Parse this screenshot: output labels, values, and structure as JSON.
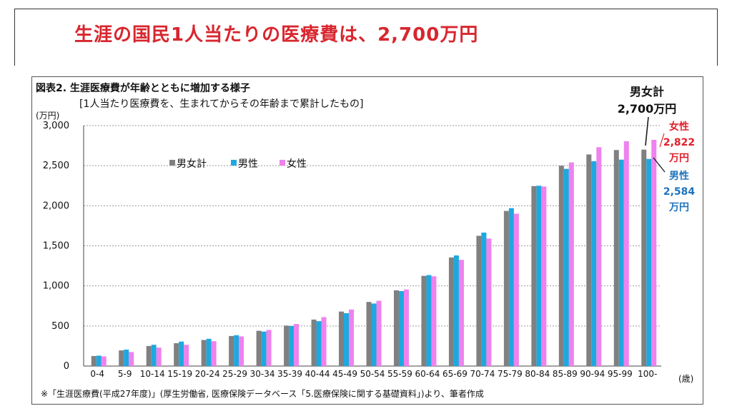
{
  "slide": {
    "title": "生涯の国民1人当たりの医療費は、2,700万円"
  },
  "chart_data": {
    "type": "bar",
    "title": "図表2. 生涯医療費が年齢とともに増加する様子",
    "subtitle": "[1人当たり医療費を、生まれてからその年齢まで累計したもの]",
    "ylabel": "(万円)",
    "xlabel": "(歳)",
    "ylim": [
      0,
      3000
    ],
    "yticks": [
      0,
      500,
      1000,
      1500,
      2000,
      2500,
      3000
    ],
    "ytick_labels": [
      "0",
      "500",
      "1,000",
      "1,500",
      "2,000",
      "2,500",
      "3,000"
    ],
    "grid": true,
    "legend_position": "top-left",
    "categories": [
      "0-4",
      "5-9",
      "10-14",
      "15-19",
      "20-24",
      "25-29",
      "30-34",
      "35-39",
      "40-44",
      "45-49",
      "50-54",
      "55-59",
      "60-64",
      "65-69",
      "70-74",
      "75-79",
      "80-84",
      "85-89",
      "90-94",
      "95-99",
      "100-"
    ],
    "series": [
      {
        "name": "男女計",
        "color": "#808080",
        "values": [
          125,
          195,
          250,
          285,
          325,
          375,
          440,
          505,
          580,
          680,
          800,
          945,
          1125,
          1355,
          1625,
          1935,
          2245,
          2500,
          2640,
          2695,
          2700
        ]
      },
      {
        "name": "男性",
        "color": "#1ea8e0",
        "values": [
          130,
          205,
          265,
          305,
          340,
          385,
          430,
          500,
          560,
          660,
          780,
          935,
          1135,
          1380,
          1665,
          1970,
          2250,
          2460,
          2555,
          2575,
          2584
        ]
      },
      {
        "name": "女性",
        "color": "#ee82ee",
        "values": [
          120,
          175,
          230,
          265,
          310,
          370,
          450,
          525,
          610,
          705,
          815,
          955,
          1120,
          1325,
          1590,
          1900,
          2240,
          2540,
          2730,
          2805,
          2822
        ]
      }
    ],
    "annotations": {
      "total": [
        "男女計",
        "2,700万円"
      ],
      "female": [
        "女性",
        "2,822",
        "万円"
      ],
      "male": [
        "男性",
        "2,584",
        "万円"
      ]
    },
    "note": "※「生涯医療費(平成27年度)」(厚生労働省, 医療保険データベース「5.医療保険に関する基礎資料」)より、筆者作成"
  }
}
